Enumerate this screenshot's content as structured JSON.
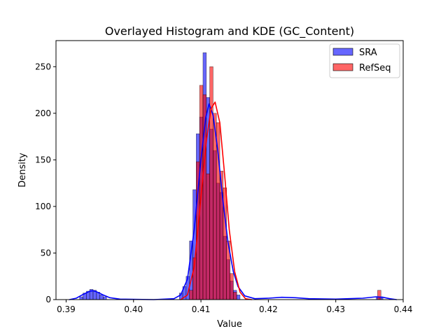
{
  "chart_data": {
    "type": "histogram",
    "title": "Overlayed Histogram and KDE (GC_Content)",
    "xlabel": "Value",
    "ylabel": "Density",
    "xlim": [
      0.3885,
      0.44
    ],
    "ylim": [
      0,
      278
    ],
    "x_ticks": [
      0.39,
      0.4,
      0.41,
      0.42,
      0.43,
      0.44
    ],
    "x_tick_labels": [
      "0.39",
      "0.40",
      "0.41",
      "0.42",
      "0.43",
      "0.44"
    ],
    "y_ticks": [
      0,
      50,
      100,
      150,
      200,
      250
    ],
    "y_tick_labels": [
      "0",
      "50",
      "100",
      "150",
      "200",
      "250"
    ],
    "grid": false,
    "legend_position": "top-right",
    "series": [
      {
        "name": "SRA",
        "color": "#0000ff",
        "fill_alpha": 0.6,
        "bins": [
          [
            0.392,
            0.3925,
            3
          ],
          [
            0.3925,
            0.393,
            7
          ],
          [
            0.393,
            0.3935,
            9
          ],
          [
            0.3935,
            0.394,
            11
          ],
          [
            0.394,
            0.3945,
            10
          ],
          [
            0.3945,
            0.395,
            8
          ],
          [
            0.395,
            0.3955,
            5
          ],
          [
            0.3955,
            0.396,
            3
          ],
          [
            0.4068,
            0.4073,
            7
          ],
          [
            0.4073,
            0.4078,
            14
          ],
          [
            0.4078,
            0.4083,
            25
          ],
          [
            0.4083,
            0.4088,
            63
          ],
          [
            0.4088,
            0.4093,
            118
          ],
          [
            0.4093,
            0.4098,
            178
          ],
          [
            0.4098,
            0.4103,
            196
          ],
          [
            0.4103,
            0.4108,
            265
          ],
          [
            0.4108,
            0.4113,
            217
          ],
          [
            0.4113,
            0.4118,
            183
          ],
          [
            0.4118,
            0.4123,
            160
          ],
          [
            0.4123,
            0.4128,
            125
          ],
          [
            0.4128,
            0.4133,
            115
          ],
          [
            0.4133,
            0.4138,
            68
          ],
          [
            0.4138,
            0.4143,
            43
          ],
          [
            0.4143,
            0.4148,
            20
          ],
          [
            0.4148,
            0.4153,
            10
          ],
          [
            0.4153,
            0.4158,
            5
          ],
          [
            0.436,
            0.4365,
            3
          ],
          [
            0.4365,
            0.437,
            3
          ]
        ],
        "kde": [
          [
            0.3905,
            0
          ],
          [
            0.3915,
            1.5
          ],
          [
            0.3925,
            5.5
          ],
          [
            0.3935,
            9
          ],
          [
            0.394,
            9.5
          ],
          [
            0.3945,
            8.5
          ],
          [
            0.3955,
            5
          ],
          [
            0.3965,
            2
          ],
          [
            0.398,
            0.5
          ],
          [
            0.403,
            0
          ],
          [
            0.406,
            1
          ],
          [
            0.407,
            5
          ],
          [
            0.408,
            22
          ],
          [
            0.409,
            75
          ],
          [
            0.41,
            150
          ],
          [
            0.4107,
            195
          ],
          [
            0.4112,
            210
          ],
          [
            0.4118,
            198
          ],
          [
            0.4125,
            160
          ],
          [
            0.4132,
            110
          ],
          [
            0.414,
            62
          ],
          [
            0.4148,
            30
          ],
          [
            0.4155,
            14
          ],
          [
            0.4165,
            4
          ],
          [
            0.418,
            1
          ],
          [
            0.42,
            1.5
          ],
          [
            0.422,
            2.5
          ],
          [
            0.424,
            2
          ],
          [
            0.426,
            1
          ],
          [
            0.43,
            0.5
          ],
          [
            0.434,
            1.5
          ],
          [
            0.436,
            3
          ],
          [
            0.437,
            2.5
          ],
          [
            0.438,
            1
          ],
          [
            0.439,
            0
          ]
        ]
      },
      {
        "name": "RefSeq",
        "color": "#ff0000",
        "fill_alpha": 0.6,
        "bins": [
          [
            0.4083,
            0.4088,
            10
          ],
          [
            0.4088,
            0.4093,
            45
          ],
          [
            0.4093,
            0.4098,
            148
          ],
          [
            0.4098,
            0.4103,
            230
          ],
          [
            0.4103,
            0.4108,
            220
          ],
          [
            0.4108,
            0.4113,
            135
          ],
          [
            0.4113,
            0.4118,
            250
          ],
          [
            0.4118,
            0.4123,
            200
          ],
          [
            0.4123,
            0.4128,
            190
          ],
          [
            0.4128,
            0.4133,
            138
          ],
          [
            0.4133,
            0.4138,
            120
          ],
          [
            0.4138,
            0.4143,
            63
          ],
          [
            0.4143,
            0.4148,
            28
          ],
          [
            0.4148,
            0.4153,
            8
          ],
          [
            0.4362,
            0.4367,
            10
          ]
        ],
        "kde": [
          [
            0.407,
            0
          ],
          [
            0.408,
            5
          ],
          [
            0.409,
            35
          ],
          [
            0.41,
            110
          ],
          [
            0.4108,
            170
          ],
          [
            0.4115,
            205
          ],
          [
            0.4121,
            212
          ],
          [
            0.4128,
            190
          ],
          [
            0.4135,
            135
          ],
          [
            0.4142,
            75
          ],
          [
            0.415,
            30
          ],
          [
            0.4158,
            8
          ],
          [
            0.4166,
            1
          ],
          [
            0.4175,
            0
          ]
        ]
      }
    ]
  }
}
